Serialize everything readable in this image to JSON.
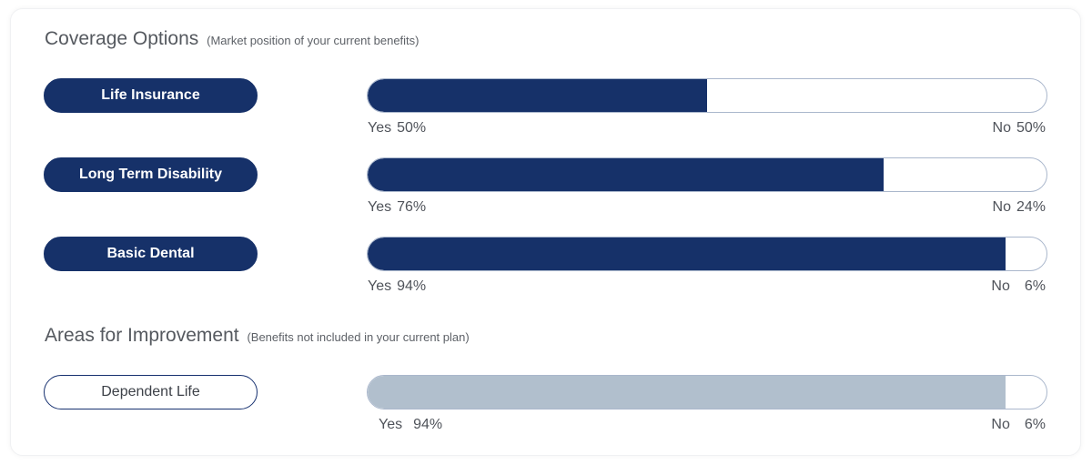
{
  "coverage": {
    "title": "Coverage Options",
    "subtitle": "(Market position of your current benefits)",
    "items": [
      {
        "label": "Life Insurance",
        "yes_label": "Yes",
        "yes_value": "50%",
        "no_label": "No",
        "no_value": "50%",
        "yes_fraction": 0.5
      },
      {
        "label": "Long Term Disability",
        "yes_label": "Yes",
        "yes_value": "76%",
        "no_label": "No",
        "no_value": "24%",
        "yes_fraction": 0.76
      },
      {
        "label": "Basic Dental",
        "yes_label": "Yes",
        "yes_value": "94%",
        "no_label": "No",
        "no_value": "6%",
        "yes_fraction": 0.94
      }
    ]
  },
  "improvement": {
    "title": "Areas for Improvement",
    "subtitle": "(Benefits not included in your current plan)",
    "items": [
      {
        "label": "Dependent Life",
        "yes_label": "Yes",
        "yes_value": "94%",
        "no_label": "No",
        "no_value": "6%",
        "yes_fraction": 0.94
      }
    ]
  },
  "colors": {
    "navy": "#163169",
    "gray_fill": "#b1bfcd",
    "bar_border": "#aab7cc"
  }
}
